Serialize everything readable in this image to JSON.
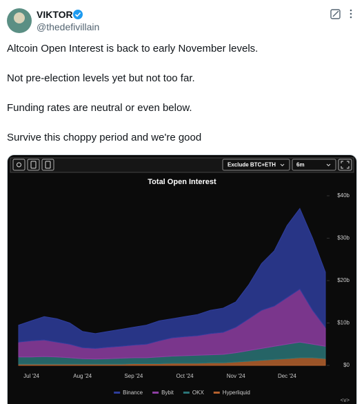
{
  "tweet": {
    "author_name": "VIKTOR",
    "handle": "@thedefivillain",
    "text_lines": [
      "Altcoin Open Interest is back to early November levels.",
      "Not pre-election levels yet but not too far.",
      "Funding rates are neutral or even below.",
      "Survive this choppy period and we're good"
    ]
  },
  "chart_toolbar": {
    "filter": "Exclude BTC+ETH",
    "range": "6m"
  },
  "chart_data": {
    "type": "area",
    "stacked": true,
    "title": "Total Open Interest",
    "categories": [
      null,
      "Jul '24",
      null,
      null,
      null,
      "Aug '24",
      null,
      null,
      null,
      "Sep '24",
      null,
      null,
      null,
      "Oct '24",
      null,
      null,
      null,
      "Nov '24",
      null,
      null,
      null,
      "Dec '24",
      null,
      null,
      null
    ],
    "series": [
      {
        "name": "Hyperliquid",
        "color": "#b5612e",
        "values": [
          0.3,
          0.3,
          0.3,
          0.3,
          0.3,
          0.3,
          0.3,
          0.3,
          0.3,
          0.4,
          0.4,
          0.4,
          0.5,
          0.5,
          0.5,
          0.6,
          0.6,
          0.8,
          1,
          1.2,
          1.4,
          1.6,
          1.8,
          1.8,
          1.6
        ]
      },
      {
        "name": "OKX",
        "color": "#2a7477",
        "values": [
          1.7,
          1.7,
          1.8,
          1.7,
          1.5,
          1.3,
          1.2,
          1.3,
          1.4,
          1.4,
          1.4,
          1.6,
          1.7,
          1.8,
          1.9,
          1.9,
          2,
          2.2,
          2.5,
          2.8,
          3.1,
          3.4,
          3.7,
          3.2,
          2.9
        ]
      },
      {
        "name": "Bybit",
        "color": "#8e3ea3",
        "values": [
          3.5,
          3.8,
          3.9,
          3.5,
          3.2,
          2.6,
          2.5,
          2.7,
          2.8,
          3,
          3.2,
          3.8,
          4.3,
          4.5,
          4.6,
          5,
          5.2,
          6,
          7.5,
          9,
          9.5,
          11,
          12.5,
          8,
          4.5
        ]
      },
      {
        "name": "Binance",
        "color": "#2e3d9c",
        "values": [
          4,
          4.7,
          5.5,
          5.5,
          5,
          3.8,
          3.5,
          3.7,
          4,
          4.2,
          4.5,
          4.7,
          4.5,
          4.7,
          5,
          5.5,
          5.7,
          6,
          8,
          11,
          13,
          17,
          19,
          17,
          13
        ]
      }
    ],
    "ylim": [
      0,
      40
    ],
    "yticks": [
      {
        "value": 0,
        "label": "$0"
      },
      {
        "value": 10,
        "label": "$10b"
      },
      {
        "value": 20,
        "label": "$20b"
      },
      {
        "value": 30,
        "label": "$30b"
      },
      {
        "value": 40,
        "label": "$40b"
      }
    ],
    "grid": false,
    "legend": "bottom"
  },
  "footer_control": "<v>"
}
